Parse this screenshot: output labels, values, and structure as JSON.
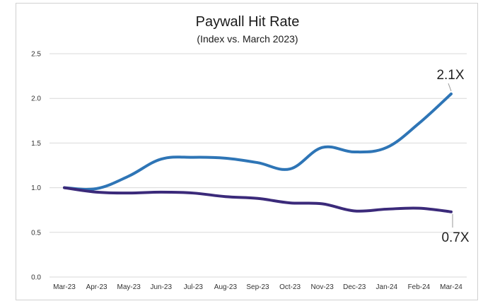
{
  "chart_data": {
    "type": "line",
    "title": "Paywall Hit Rate",
    "subtitle": "(Index vs. March 2023)",
    "xlabel": "",
    "ylabel": "",
    "categories": [
      "Mar-23",
      "Apr-23",
      "May-23",
      "Jun-23",
      "Jul-23",
      "Aug-23",
      "Sep-23",
      "Oct-23",
      "Nov-23",
      "Dec-23",
      "Jan-24",
      "Feb-24",
      "Mar-24"
    ],
    "ylim": [
      0,
      2.5
    ],
    "yticks": [
      "0.0",
      "0.5",
      "1.0",
      "1.5",
      "2.0",
      "2.5"
    ],
    "grid": true,
    "series": [
      {
        "color": "#2e75b6",
        "values": [
          1.0,
          0.99,
          1.13,
          1.32,
          1.34,
          1.33,
          1.28,
          1.21,
          1.45,
          1.4,
          1.45,
          1.72,
          2.05
        ]
      },
      {
        "color": "#3b2a7a",
        "values": [
          1.0,
          0.95,
          0.94,
          0.95,
          0.94,
          0.9,
          0.88,
          0.83,
          0.82,
          0.74,
          0.76,
          0.77,
          0.73
        ]
      }
    ],
    "annotations": [
      {
        "text": "2.1X",
        "series": 0
      },
      {
        "text": "0.7X",
        "series": 1
      }
    ]
  }
}
